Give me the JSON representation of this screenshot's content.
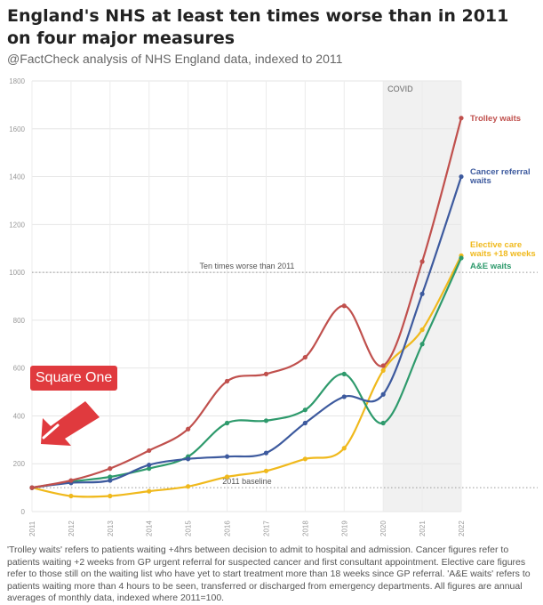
{
  "header": {
    "title": "England's NHS at least ten times worse than in 2011 on four major measures",
    "subtitle": "@FactCheck analysis of NHS England data, indexed to 2011"
  },
  "logo": {
    "text": "Square One",
    "color": "#e03a3e"
  },
  "footnote": "'Trolley waits' refers to patients waiting +4hrs between decision to admit to hospital and admission. Cancer figures refer to patients waiting +2 weeks from GP urgent referral for suspected cancer and first consultant appointment. Elective care figures refer to those still on the waiting list who have yet to start treatment more than 18 weeks since GP referral. 'A&E waits' refers to patients waiting more than 4 hours to be seen, transferred or discharged from emergency departments. All figures are annual averages of monthly data, indexed where 2011=100.",
  "chart_data": {
    "type": "line",
    "title": "England's NHS at least ten times worse than in 2011 on four major measures",
    "subtitle": "@FactCheck analysis of NHS England data, indexed to 2011",
    "x": [
      "2011",
      "2012",
      "2013",
      "2014",
      "2015",
      "2016",
      "2017",
      "2018",
      "2019",
      "2020",
      "2021",
      "2022"
    ],
    "ylim": [
      0,
      1800
    ],
    "yticks": [
      0,
      200,
      400,
      600,
      800,
      1000,
      1200,
      1400,
      1600,
      1800
    ],
    "grid": true,
    "shaded_region": {
      "from": "2020",
      "to": "2022",
      "label": "COVID"
    },
    "reference_lines": [
      {
        "value": 1000,
        "label": "Ten times worse than 2011"
      },
      {
        "value": 100,
        "label": "2011 baseline"
      }
    ],
    "series": [
      {
        "name": "Trolley waits",
        "color": "#c0504d",
        "values": [
          100,
          130,
          180,
          255,
          345,
          545,
          575,
          645,
          860,
          610,
          1045,
          1645
        ]
      },
      {
        "name": "Cancer referral waits",
        "color": "#3d5a9e",
        "values": [
          100,
          120,
          130,
          195,
          220,
          230,
          245,
          370,
          480,
          490,
          910,
          1400
        ]
      },
      {
        "name": "Elective care waits +18 weeks",
        "color": "#f0b91c",
        "values": [
          100,
          65,
          65,
          85,
          105,
          145,
          170,
          220,
          265,
          590,
          760,
          1070
        ]
      },
      {
        "name": "A&E waits",
        "color": "#2e9a6c",
        "values": [
          100,
          125,
          145,
          180,
          230,
          370,
          380,
          425,
          575,
          370,
          700,
          1060
        ]
      }
    ]
  }
}
